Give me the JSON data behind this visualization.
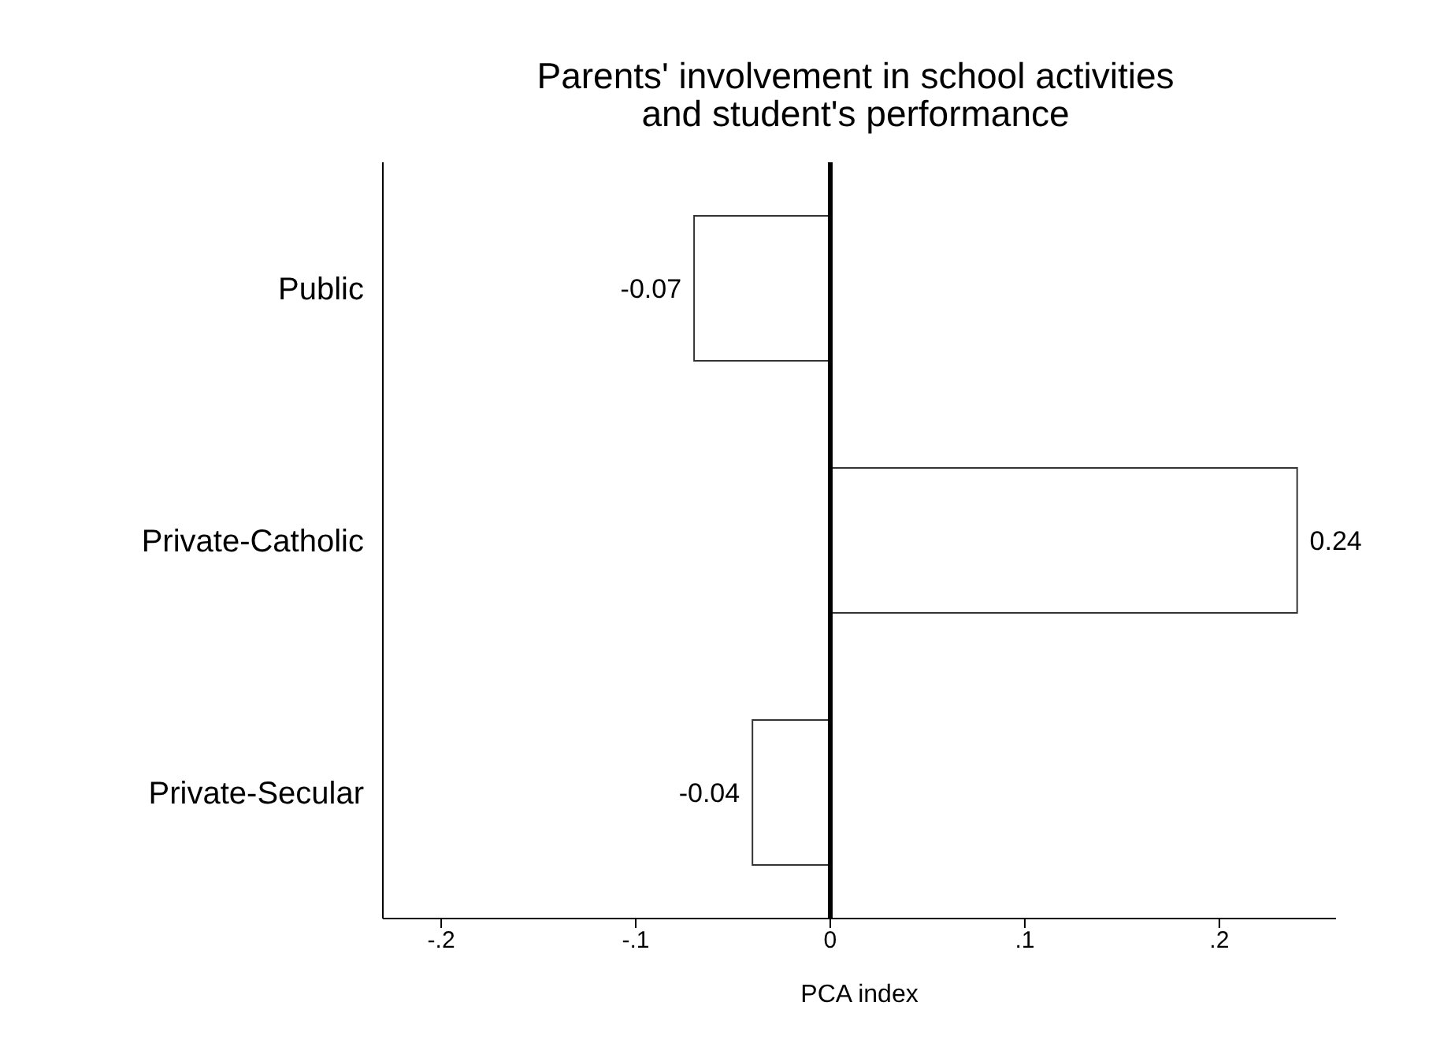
{
  "chart_data": {
    "type": "bar",
    "orientation": "horizontal",
    "title": "Parents' involvement in school activities\nand student's performance",
    "xlabel": "PCA index",
    "categories": [
      "Public",
      "Private-Catholic",
      "Private-Secular"
    ],
    "values": [
      -0.07,
      0.24,
      -0.04
    ],
    "color": "#ffffff",
    "data_labels": true,
    "xlim": [
      -0.23,
      0.26
    ],
    "xticks": [
      {
        "value": -0.2,
        "label": "-.2"
      },
      {
        "value": -0.1,
        "label": "-.1"
      },
      0,
      {
        "value": 0.1,
        "label": ".1"
      },
      {
        "value": 0.2,
        "label": ".2"
      }
    ],
    "ref_lines": [
      {
        "axis": "x",
        "value": 0,
        "color": "#000000"
      }
    ],
    "grid": false,
    "legend": false
  }
}
